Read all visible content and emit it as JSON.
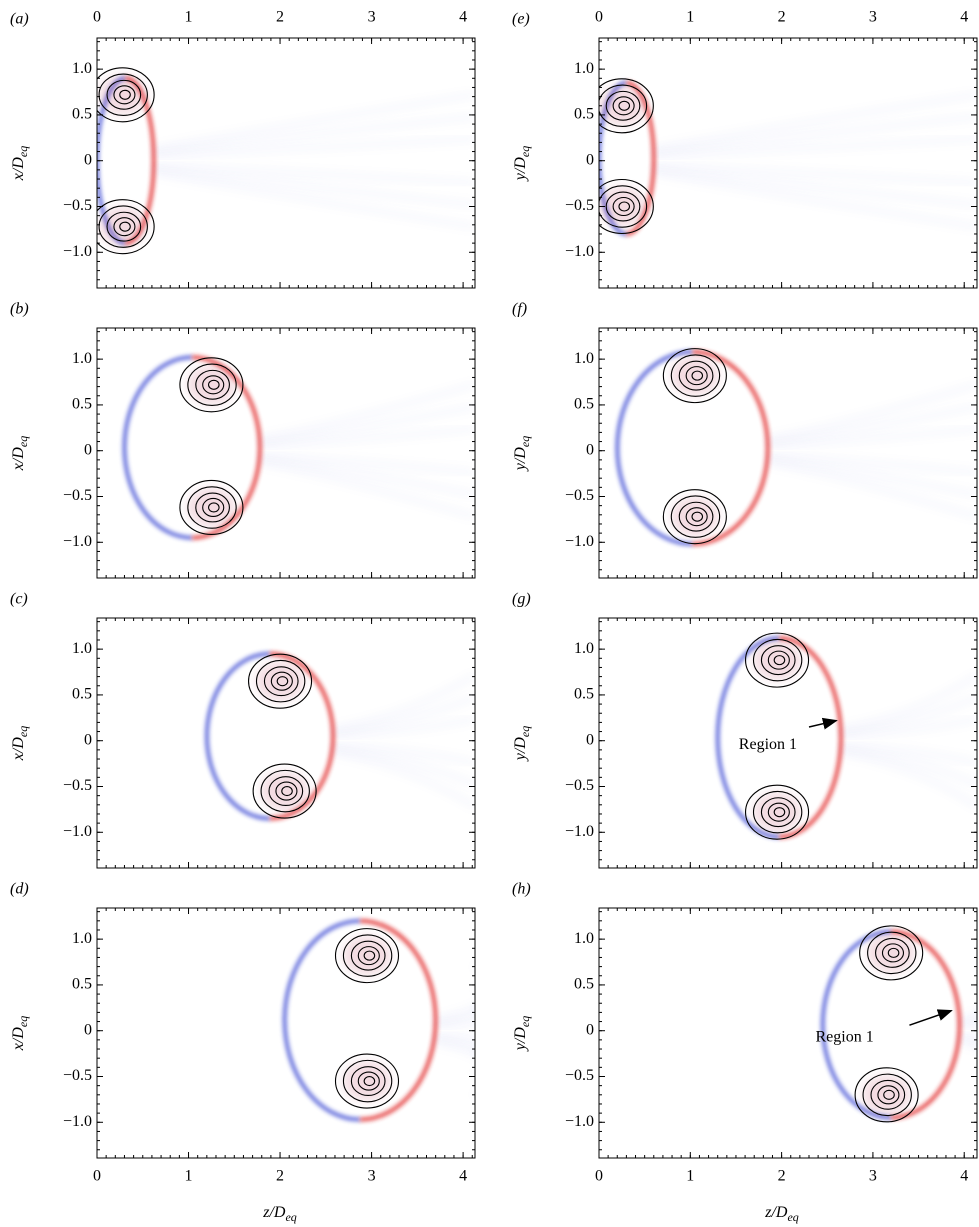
{
  "chart_data": [
    {
      "type": "contour",
      "label": "(a)",
      "ylabel": "x/Deq",
      "xlim": [
        0,
        4.13
      ],
      "ylim": [
        -1.39,
        1.34
      ],
      "xticks": [
        0,
        1,
        2,
        3,
        4
      ],
      "xtick_labels_side": "top",
      "yticks": [
        {
          "value": -1,
          "label": "−1.0"
        },
        {
          "value": -0.5,
          "label": "−0.5"
        },
        0,
        0.5,
        {
          "value": 1,
          "label": "1.0"
        }
      ]
    },
    {
      "type": "contour",
      "label": "(b)",
      "ylabel": "x/Deq",
      "xlim": [
        0,
        4.13
      ],
      "ylim": [
        -1.39,
        1.34
      ],
      "xticks": [
        0,
        1,
        2,
        3,
        4
      ],
      "yticks": [
        {
          "value": -1,
          "label": "−1.0"
        },
        {
          "value": -0.5,
          "label": "−0.5"
        },
        0,
        0.5,
        {
          "value": 1,
          "label": "1.0"
        }
      ]
    },
    {
      "type": "contour",
      "label": "(c)",
      "ylabel": "x/Deq",
      "xlim": [
        0,
        4.13
      ],
      "ylim": [
        -1.39,
        1.34
      ],
      "xticks": [
        0,
        1,
        2,
        3,
        4
      ],
      "yticks": [
        {
          "value": -1,
          "label": "−1.0"
        },
        {
          "value": -0.5,
          "label": "−0.5"
        },
        0,
        0.5,
        {
          "value": 1,
          "label": "1.0"
        }
      ]
    },
    {
      "type": "contour",
      "label": "(d)",
      "ylabel": "x/Deq",
      "xlabel": "z/Deq",
      "xlim": [
        0,
        4.13
      ],
      "ylim": [
        -1.39,
        1.34
      ],
      "xticks": [
        0,
        1,
        2,
        3,
        4
      ],
      "xtick_labels_side": "bottom",
      "yticks": [
        {
          "value": -1,
          "label": "−1.0"
        },
        {
          "value": -0.5,
          "label": "−0.5"
        },
        0,
        0.5,
        {
          "value": 1,
          "label": "1.0"
        }
      ]
    },
    {
      "type": "contour",
      "label": "(e)",
      "ylabel": "y/Deq",
      "xlim": [
        0,
        4.14
      ],
      "ylim": [
        -1.39,
        1.34
      ],
      "xticks": [
        0,
        1,
        2,
        3,
        4
      ],
      "xtick_labels_side": "top",
      "yticks": [
        {
          "value": -1,
          "label": "−1.0"
        },
        {
          "value": -0.5,
          "label": "−0.5"
        },
        0,
        0.5,
        {
          "value": 1,
          "label": "1.0"
        }
      ]
    },
    {
      "type": "contour",
      "label": "(f)",
      "ylabel": "y/Deq",
      "xlim": [
        0,
        4.14
      ],
      "ylim": [
        -1.39,
        1.34
      ],
      "xticks": [
        0,
        1,
        2,
        3,
        4
      ],
      "yticks": [
        {
          "value": -1,
          "label": "−1.0"
        },
        {
          "value": -0.5,
          "label": "−0.5"
        },
        0,
        0.5,
        {
          "value": 1,
          "label": "1.0"
        }
      ]
    },
    {
      "type": "contour",
      "label": "(g)",
      "ylabel": "y/Deq",
      "xlim": [
        0,
        4.14
      ],
      "ylim": [
        -1.39,
        1.34
      ],
      "xticks": [
        0,
        1,
        2,
        3,
        4
      ],
      "annotations": [
        {
          "text": "Region 1"
        }
      ],
      "yticks": [
        {
          "value": -1,
          "label": "−1.0"
        },
        {
          "value": -0.5,
          "label": "−0.5"
        },
        0,
        0.5,
        {
          "value": 1,
          "label": "1.0"
        }
      ]
    },
    {
      "type": "contour",
      "label": "(h)",
      "ylabel": "y/Deq",
      "xlabel": "z/Deq",
      "xlim": [
        0,
        4.14
      ],
      "ylim": [
        -1.39,
        1.34
      ],
      "xticks": [
        0,
        1,
        2,
        3,
        4
      ],
      "xtick_labels_side": "bottom",
      "annotations": [
        {
          "text": "Region 1"
        }
      ],
      "yticks": [
        {
          "value": -1,
          "label": "−1.0"
        },
        {
          "value": -0.5,
          "label": "−0.5"
        },
        0,
        0.5,
        {
          "value": 1,
          "label": "1.0"
        }
      ]
    }
  ]
}
